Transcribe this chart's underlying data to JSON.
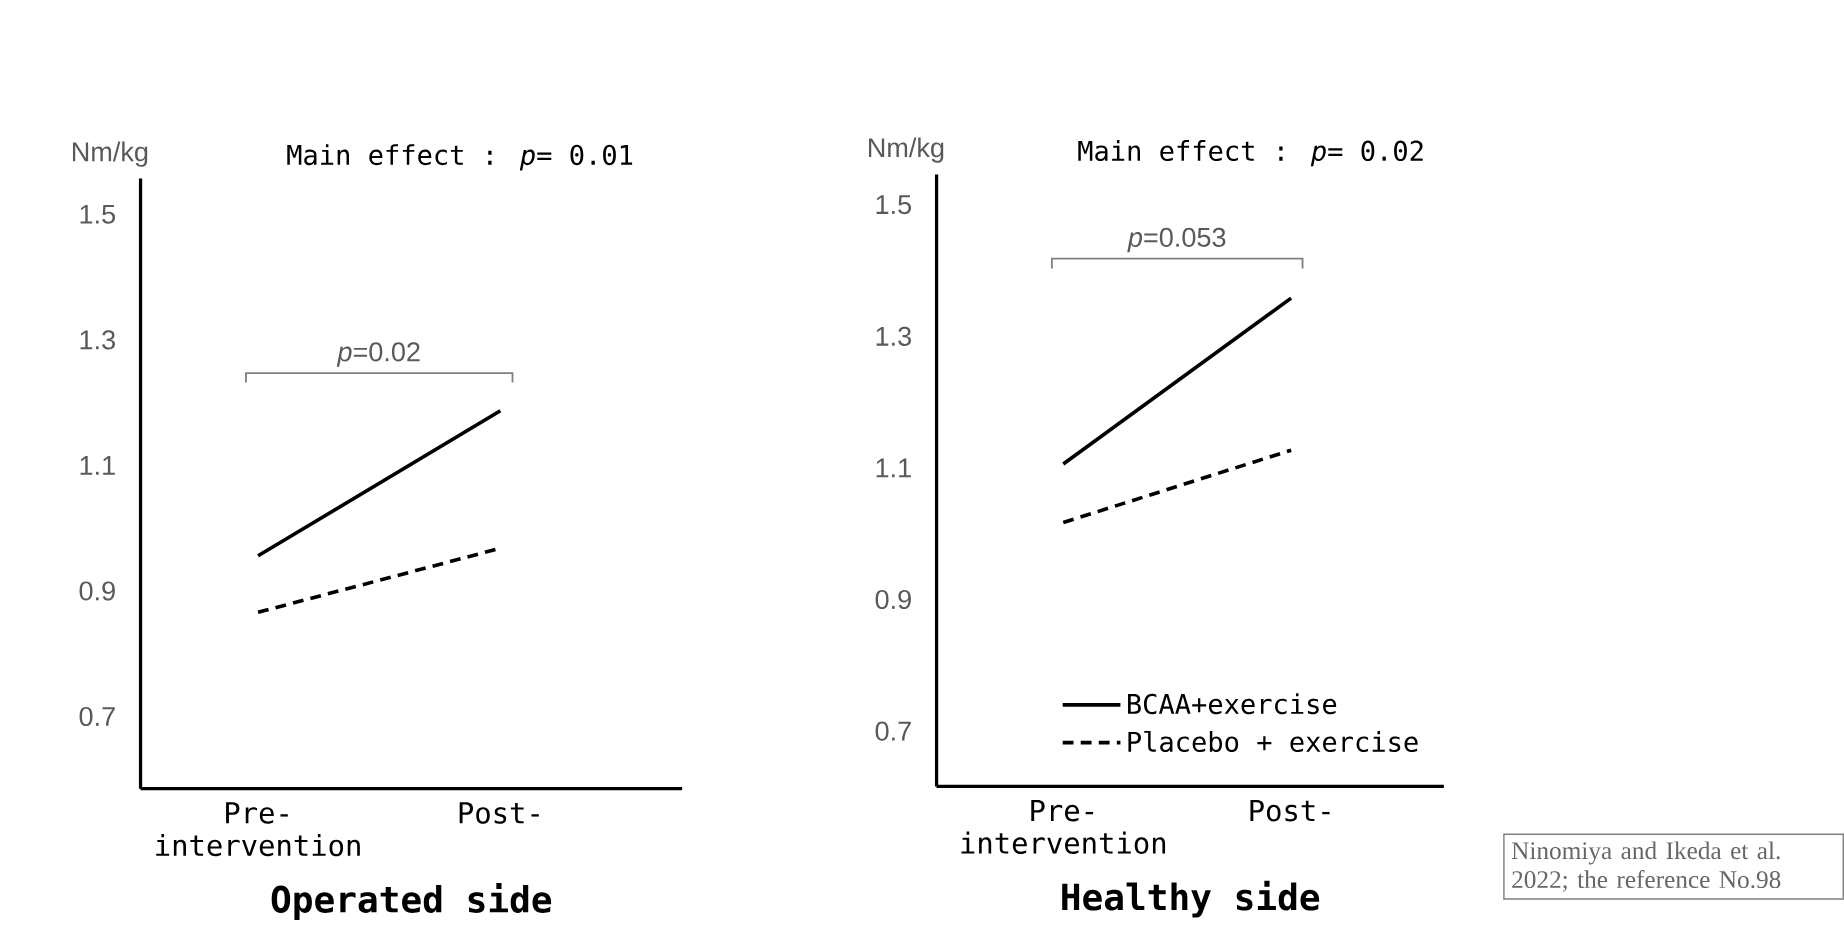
{
  "chart_data": [
    {
      "type": "line",
      "ylabel": "Nm/kg",
      "xlabel": "Operated side",
      "categories": [
        "Pre-intervention",
        "Post-"
      ],
      "ylim": [
        0.585,
        1.557
      ],
      "yticks": [
        0.7,
        0.9,
        1.1,
        1.3,
        1.5
      ],
      "series": [
        {
          "color": "#000000",
          "line_style": "solid",
          "values": [
            0.956,
            1.187
          ]
        },
        {
          "color": "#000000",
          "line_style": "dashed",
          "values": [
            0.866,
            0.968
          ]
        }
      ],
      "annotations": [
        "Main effect : *p*= 0.01",
        "*p*=0.02"
      ]
    },
    {
      "type": "line",
      "ylabel": "Nm/kg",
      "xlabel": "Healthy side",
      "categories": [
        "Pre-intervention",
        "Post-"
      ],
      "ylim": [
        0.616,
        1.546
      ],
      "yticks": [
        0.7,
        0.9,
        1.1,
        1.3,
        1.5
      ],
      "series": [
        {
          "name": "BCAA+exercise",
          "color": "#000000",
          "line_style": "solid",
          "values": [
            1.106,
            1.358
          ]
        },
        {
          "name": "Placebo + exercise",
          "color": "#000000",
          "line_style": "dashed",
          "values": [
            1.017,
            1.127
          ]
        }
      ],
      "legend": "bottom right",
      "annotations": [
        "Main effect : *p*= 0.02",
        "*p*=0.053",
        "Ninomiya and Ikeda et al. 2022; the reference No.98"
      ]
    }
  ]
}
